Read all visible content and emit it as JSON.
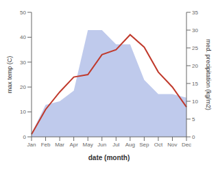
{
  "chart_data": {
    "type": "line",
    "categories": [
      "Jan",
      "Feb",
      "Mar",
      "Apr",
      "May",
      "Jun",
      "Jul",
      "Aug",
      "Sep",
      "Oct",
      "Nov",
      "Dec"
    ],
    "series": [
      {
        "type": "area",
        "axis": "y2",
        "color": "#b8c4ea",
        "values": [
          1,
          9,
          10,
          13,
          30,
          30,
          26,
          26,
          16,
          12,
          12,
          11
        ]
      },
      {
        "type": "line",
        "color": "#c0392b",
        "values": [
          1,
          11,
          18,
          24,
          25,
          33,
          35,
          41,
          36,
          26,
          20,
          12
        ]
      }
    ],
    "xlabel": "date (month)",
    "ylabel": "max temp (C)",
    "y2label": "med. precipitation (kg/m2)",
    "ylim": [
      0,
      50
    ],
    "yticks": [
      0,
      10,
      20,
      30,
      40,
      50
    ],
    "y2lim": [
      0,
      35
    ],
    "y2ticks": [
      0,
      5,
      10,
      15,
      20,
      25,
      30,
      35
    ],
    "grid": false
  }
}
